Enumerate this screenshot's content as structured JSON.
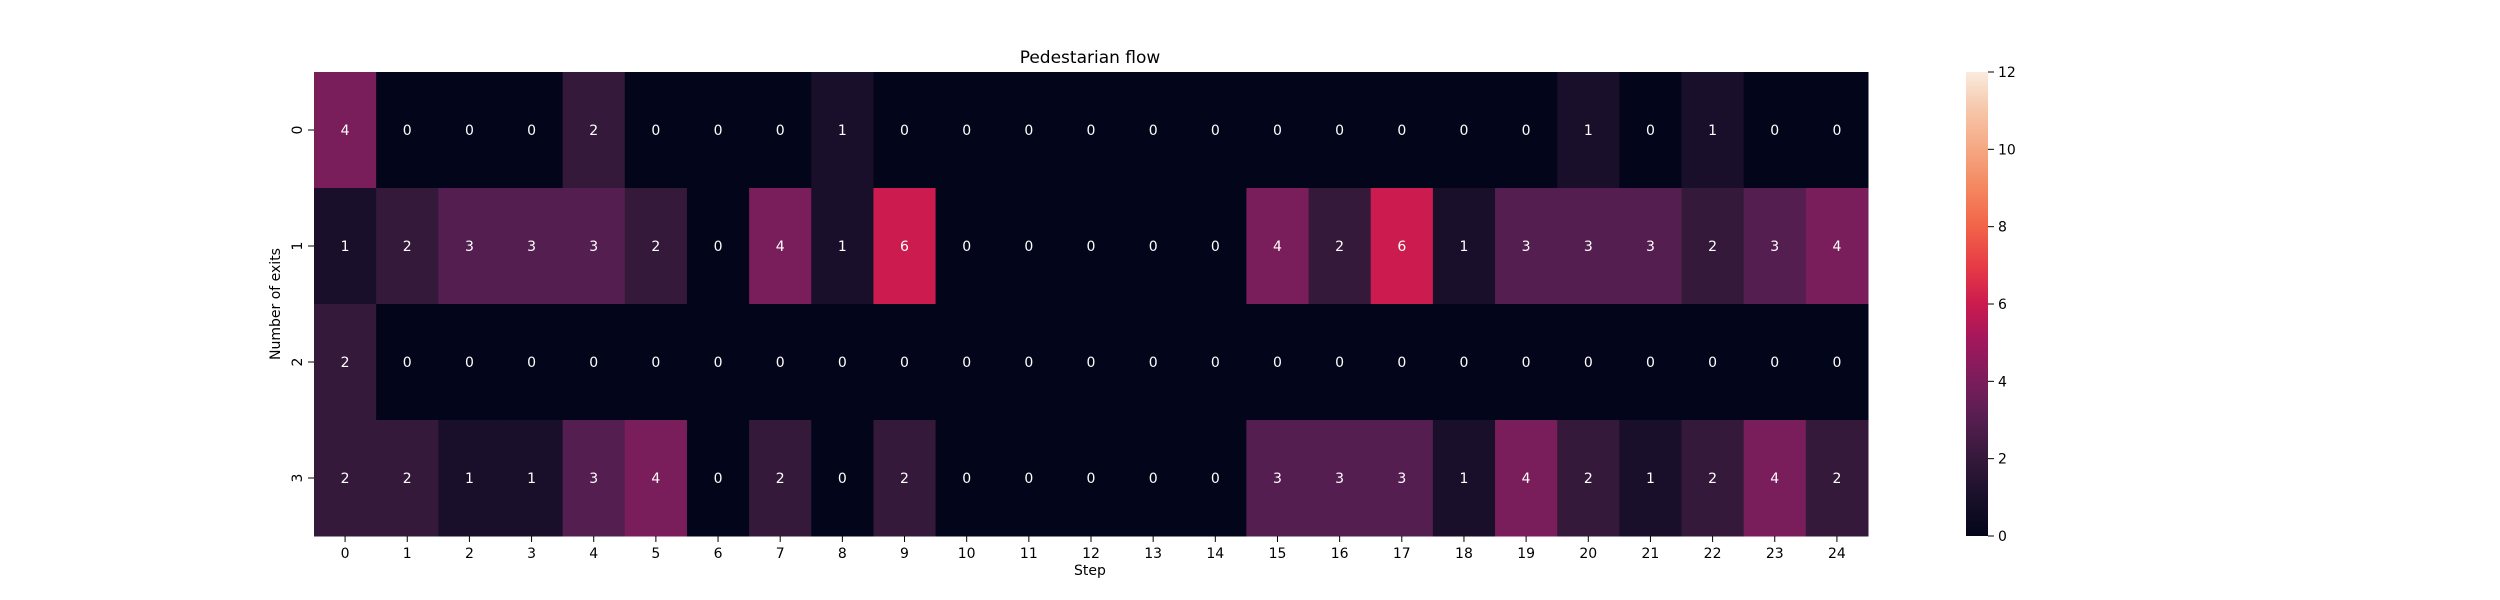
{
  "chart_data": {
    "type": "heatmap",
    "title": "Pedestarian flow",
    "xlabel": "Step",
    "ylabel": "Number of exits",
    "x_categories": [
      "0",
      "1",
      "2",
      "3",
      "4",
      "5",
      "6",
      "7",
      "8",
      "9",
      "10",
      "11",
      "12",
      "13",
      "14",
      "15",
      "16",
      "17",
      "18",
      "19",
      "20",
      "21",
      "22",
      "23",
      "24"
    ],
    "y_categories": [
      "0",
      "1",
      "2",
      "3"
    ],
    "values": [
      [
        4,
        0,
        0,
        0,
        2,
        0,
        0,
        0,
        1,
        0,
        0,
        0,
        0,
        0,
        0,
        0,
        0,
        0,
        0,
        0,
        1,
        0,
        1,
        0,
        0
      ],
      [
        1,
        2,
        3,
        3,
        3,
        2,
        0,
        4,
        1,
        6,
        0,
        0,
        0,
        0,
        0,
        4,
        2,
        6,
        1,
        3,
        3,
        3,
        2,
        3,
        4
      ],
      [
        2,
        0,
        0,
        0,
        0,
        0,
        0,
        0,
        0,
        0,
        0,
        0,
        0,
        0,
        0,
        0,
        0,
        0,
        0,
        0,
        0,
        0,
        0,
        0,
        0
      ],
      [
        2,
        2,
        1,
        1,
        3,
        4,
        0,
        2,
        0,
        2,
        0,
        0,
        0,
        0,
        0,
        3,
        3,
        3,
        1,
        4,
        2,
        1,
        2,
        4,
        2
      ]
    ],
    "colorbar": {
      "min": 0,
      "max": 12,
      "ticks": [
        0,
        2,
        4,
        6,
        8,
        10,
        12
      ],
      "colormap": "rocket"
    },
    "annotate": true
  }
}
